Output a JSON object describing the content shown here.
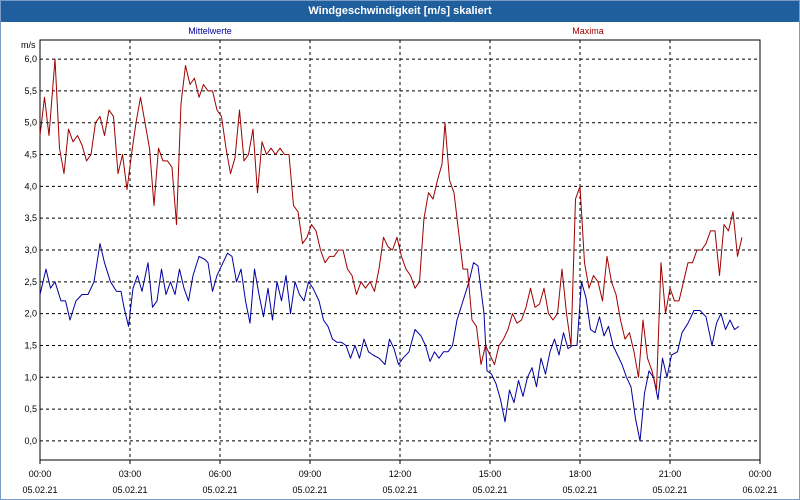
{
  "title": "Windgeschwindigkeit [m/s] skaliert",
  "chart_data": {
    "type": "line",
    "ylabel": "m/s",
    "ylim": [
      -0.3,
      6.3
    ],
    "yticks": [
      "6,0",
      "5,5",
      "5,0",
      "4,5",
      "4,0",
      "3,5",
      "3,0",
      "2,5",
      "2,0",
      "1,5",
      "1,0",
      "0,5",
      "0,0"
    ],
    "ytick_values": [
      6.0,
      5.5,
      5.0,
      4.5,
      4.0,
      3.5,
      3.0,
      2.5,
      2.0,
      1.5,
      1.0,
      0.5,
      0.0
    ],
    "xlim": [
      0,
      24
    ],
    "xticks": [
      {
        "x": 0,
        "time": "00:00",
        "date": "05.02.21"
      },
      {
        "x": 3,
        "time": "03:00",
        "date": "05.02.21"
      },
      {
        "x": 6,
        "time": "06:00",
        "date": "05.02.21"
      },
      {
        "x": 9,
        "time": "09:00",
        "date": "05.02.21"
      },
      {
        "x": 12,
        "time": "12:00",
        "date": "05.02.21"
      },
      {
        "x": 15,
        "time": "15:00",
        "date": "05.02.21"
      },
      {
        "x": 18,
        "time": "18:00",
        "date": "05.02.21"
      },
      {
        "x": 21,
        "time": "21:00",
        "date": "05.02.21"
      },
      {
        "x": 24,
        "time": "00:00",
        "date": "06.02.21"
      }
    ],
    "grid": true,
    "legend_position": "top",
    "series": [
      {
        "name": "Mittelwerte",
        "color": "#0000a0",
        "points": [
          [
            0,
            2.3
          ],
          [
            0.2,
            2.7
          ],
          [
            0.35,
            2.4
          ],
          [
            0.5,
            2.5
          ],
          [
            0.7,
            2.2
          ],
          [
            0.85,
            2.2
          ],
          [
            1.0,
            1.9
          ],
          [
            1.2,
            2.2
          ],
          [
            1.4,
            2.3
          ],
          [
            1.6,
            2.3
          ],
          [
            1.8,
            2.5
          ],
          [
            2.0,
            3.1
          ],
          [
            2.15,
            2.8
          ],
          [
            2.35,
            2.5
          ],
          [
            2.55,
            2.35
          ],
          [
            2.7,
            2.35
          ],
          [
            2.8,
            2.1
          ],
          [
            2.95,
            1.8
          ],
          [
            3.1,
            2.4
          ],
          [
            3.25,
            2.6
          ],
          [
            3.4,
            2.35
          ],
          [
            3.6,
            2.8
          ],
          [
            3.75,
            2.1
          ],
          [
            3.9,
            2.2
          ],
          [
            4.05,
            2.7
          ],
          [
            4.2,
            2.3
          ],
          [
            4.35,
            2.5
          ],
          [
            4.5,
            2.3
          ],
          [
            4.65,
            2.7
          ],
          [
            4.8,
            2.4
          ],
          [
            4.95,
            2.2
          ],
          [
            5.1,
            2.6
          ],
          [
            5.3,
            2.9
          ],
          [
            5.5,
            2.85
          ],
          [
            5.6,
            2.8
          ],
          [
            5.75,
            2.35
          ],
          [
            5.9,
            2.6
          ],
          [
            6.1,
            2.8
          ],
          [
            6.25,
            2.95
          ],
          [
            6.4,
            2.9
          ],
          [
            6.55,
            2.5
          ],
          [
            6.7,
            2.7
          ],
          [
            6.85,
            2.2
          ],
          [
            7.0,
            1.85
          ],
          [
            7.15,
            2.7
          ],
          [
            7.3,
            2.3
          ],
          [
            7.45,
            1.95
          ],
          [
            7.6,
            2.4
          ],
          [
            7.75,
            1.9
          ],
          [
            7.9,
            2.5
          ],
          [
            8.05,
            2.2
          ],
          [
            8.2,
            2.6
          ],
          [
            8.35,
            2.0
          ],
          [
            8.5,
            2.5
          ],
          [
            8.65,
            2.3
          ],
          [
            8.8,
            2.2
          ],
          [
            8.95,
            2.5
          ],
          [
            9.1,
            2.4
          ],
          [
            9.3,
            2.2
          ],
          [
            9.45,
            1.9
          ],
          [
            9.6,
            1.8
          ],
          [
            9.75,
            1.6
          ],
          [
            9.9,
            1.55
          ],
          [
            10.05,
            1.55
          ],
          [
            10.2,
            1.5
          ],
          [
            10.35,
            1.3
          ],
          [
            10.5,
            1.5
          ],
          [
            10.65,
            1.3
          ],
          [
            10.8,
            1.6
          ],
          [
            10.95,
            1.4
          ],
          [
            11.1,
            1.35
          ],
          [
            11.3,
            1.3
          ],
          [
            11.5,
            1.2
          ],
          [
            11.65,
            1.6
          ],
          [
            11.8,
            1.45
          ],
          [
            11.95,
            1.2
          ],
          [
            12.1,
            1.3
          ],
          [
            12.3,
            1.4
          ],
          [
            12.5,
            1.75
          ],
          [
            12.7,
            1.65
          ],
          [
            12.85,
            1.5
          ],
          [
            13.0,
            1.25
          ],
          [
            13.15,
            1.4
          ],
          [
            13.3,
            1.3
          ],
          [
            13.45,
            1.4
          ],
          [
            13.6,
            1.4
          ],
          [
            13.75,
            1.5
          ],
          [
            13.9,
            1.9
          ],
          [
            14.1,
            2.2
          ],
          [
            14.3,
            2.5
          ],
          [
            14.45,
            2.8
          ],
          [
            14.6,
            2.75
          ],
          [
            14.8,
            2.0
          ],
          [
            14.9,
            1.1
          ],
          [
            15.05,
            1.05
          ],
          [
            15.2,
            0.9
          ],
          [
            15.35,
            0.65
          ],
          [
            15.5,
            0.3
          ],
          [
            15.65,
            0.8
          ],
          [
            15.8,
            0.6
          ],
          [
            15.95,
            0.95
          ],
          [
            16.1,
            0.7
          ],
          [
            16.25,
            1.0
          ],
          [
            16.4,
            1.15
          ],
          [
            16.55,
            0.85
          ],
          [
            16.7,
            1.3
          ],
          [
            16.85,
            1.05
          ],
          [
            17.0,
            1.4
          ],
          [
            17.15,
            1.6
          ],
          [
            17.3,
            1.35
          ],
          [
            17.45,
            1.7
          ],
          [
            17.6,
            1.45
          ],
          [
            17.75,
            1.5
          ],
          [
            17.9,
            1.5
          ],
          [
            18.05,
            2.5
          ],
          [
            18.2,
            2.25
          ],
          [
            18.35,
            1.75
          ],
          [
            18.5,
            1.7
          ],
          [
            18.65,
            1.95
          ],
          [
            18.8,
            1.65
          ],
          [
            18.95,
            1.8
          ],
          [
            19.1,
            1.5
          ],
          [
            19.25,
            1.35
          ],
          [
            19.4,
            1.2
          ],
          [
            19.55,
            1.0
          ],
          [
            19.7,
            0.85
          ],
          [
            19.85,
            0.35
          ],
          [
            20.0,
            0.0
          ],
          [
            20.15,
            0.75
          ],
          [
            20.3,
            1.1
          ],
          [
            20.45,
            1.0
          ],
          [
            20.6,
            0.65
          ],
          [
            20.75,
            1.3
          ],
          [
            20.9,
            1.0
          ],
          [
            21.05,
            1.35
          ],
          [
            21.25,
            1.4
          ],
          [
            21.4,
            1.7
          ],
          [
            21.6,
            1.85
          ],
          [
            21.8,
            2.05
          ],
          [
            22.0,
            2.05
          ],
          [
            22.2,
            1.95
          ],
          [
            22.4,
            1.5
          ],
          [
            22.55,
            1.85
          ],
          [
            22.7,
            2.0
          ],
          [
            22.85,
            1.75
          ],
          [
            23.0,
            1.9
          ],
          [
            23.15,
            1.75
          ],
          [
            23.3,
            1.8
          ]
        ]
      },
      {
        "name": "Maxima",
        "color": "#a00000",
        "points": [
          [
            0,
            4.8
          ],
          [
            0.15,
            5.4
          ],
          [
            0.3,
            4.8
          ],
          [
            0.5,
            6.0
          ],
          [
            0.65,
            4.6
          ],
          [
            0.8,
            4.2
          ],
          [
            0.95,
            4.9
          ],
          [
            1.1,
            4.7
          ],
          [
            1.25,
            4.8
          ],
          [
            1.4,
            4.65
          ],
          [
            1.55,
            4.4
          ],
          [
            1.7,
            4.5
          ],
          [
            1.85,
            5.0
          ],
          [
            2.0,
            5.1
          ],
          [
            2.15,
            4.8
          ],
          [
            2.3,
            5.2
          ],
          [
            2.45,
            5.1
          ],
          [
            2.6,
            4.2
          ],
          [
            2.75,
            4.5
          ],
          [
            2.9,
            3.95
          ],
          [
            3.05,
            4.5
          ],
          [
            3.2,
            5.0
          ],
          [
            3.35,
            5.4
          ],
          [
            3.5,
            5.0
          ],
          [
            3.65,
            4.6
          ],
          [
            3.8,
            3.7
          ],
          [
            3.95,
            4.6
          ],
          [
            4.1,
            4.4
          ],
          [
            4.25,
            4.4
          ],
          [
            4.4,
            4.3
          ],
          [
            4.55,
            3.4
          ],
          [
            4.7,
            5.3
          ],
          [
            4.85,
            5.9
          ],
          [
            5.0,
            5.6
          ],
          [
            5.15,
            5.7
          ],
          [
            5.3,
            5.4
          ],
          [
            5.45,
            5.6
          ],
          [
            5.6,
            5.5
          ],
          [
            5.75,
            5.5
          ],
          [
            5.9,
            5.2
          ],
          [
            6.05,
            5.1
          ],
          [
            6.2,
            4.6
          ],
          [
            6.35,
            4.2
          ],
          [
            6.5,
            4.45
          ],
          [
            6.65,
            5.2
          ],
          [
            6.8,
            4.4
          ],
          [
            6.95,
            4.5
          ],
          [
            7.1,
            4.9
          ],
          [
            7.25,
            3.9
          ],
          [
            7.4,
            4.7
          ],
          [
            7.55,
            4.5
          ],
          [
            7.7,
            4.6
          ],
          [
            7.85,
            4.5
          ],
          [
            8.0,
            4.6
          ],
          [
            8.15,
            4.5
          ],
          [
            8.3,
            4.5
          ],
          [
            8.45,
            3.7
          ],
          [
            8.6,
            3.6
          ],
          [
            8.75,
            3.1
          ],
          [
            8.9,
            3.2
          ],
          [
            9.05,
            3.4
          ],
          [
            9.2,
            3.3
          ],
          [
            9.35,
            3.0
          ],
          [
            9.5,
            2.8
          ],
          [
            9.65,
            2.9
          ],
          [
            9.8,
            2.9
          ],
          [
            9.95,
            3.0
          ],
          [
            10.1,
            3.0
          ],
          [
            10.25,
            2.7
          ],
          [
            10.4,
            2.6
          ],
          [
            10.55,
            2.3
          ],
          [
            10.7,
            2.5
          ],
          [
            10.85,
            2.4
          ],
          [
            11.0,
            2.5
          ],
          [
            11.15,
            2.35
          ],
          [
            11.3,
            2.7
          ],
          [
            11.45,
            3.2
          ],
          [
            11.6,
            3.05
          ],
          [
            11.75,
            3.0
          ],
          [
            11.9,
            3.2
          ],
          [
            12.05,
            2.9
          ],
          [
            12.2,
            2.7
          ],
          [
            12.35,
            2.6
          ],
          [
            12.5,
            2.4
          ],
          [
            12.65,
            2.5
          ],
          [
            12.8,
            3.5
          ],
          [
            12.95,
            3.9
          ],
          [
            13.1,
            3.8
          ],
          [
            13.25,
            4.1
          ],
          [
            13.4,
            4.35
          ],
          [
            13.5,
            5.0
          ],
          [
            13.65,
            4.1
          ],
          [
            13.8,
            3.9
          ],
          [
            13.95,
            3.3
          ],
          [
            14.1,
            2.7
          ],
          [
            14.25,
            2.7
          ],
          [
            14.4,
            1.9
          ],
          [
            14.55,
            1.8
          ],
          [
            14.7,
            1.2
          ],
          [
            14.85,
            1.5
          ],
          [
            15.0,
            1.35
          ],
          [
            15.15,
            1.2
          ],
          [
            15.3,
            1.5
          ],
          [
            15.45,
            1.6
          ],
          [
            15.6,
            1.75
          ],
          [
            15.75,
            2.0
          ],
          [
            15.9,
            1.85
          ],
          [
            16.05,
            1.9
          ],
          [
            16.2,
            2.1
          ],
          [
            16.35,
            2.4
          ],
          [
            16.5,
            2.1
          ],
          [
            16.65,
            2.15
          ],
          [
            16.8,
            2.4
          ],
          [
            16.95,
            2.0
          ],
          [
            17.1,
            1.9
          ],
          [
            17.25,
            2.0
          ],
          [
            17.4,
            2.7
          ],
          [
            17.55,
            2.0
          ],
          [
            17.7,
            1.5
          ],
          [
            17.85,
            3.8
          ],
          [
            18.0,
            4.0
          ],
          [
            18.15,
            2.8
          ],
          [
            18.3,
            2.4
          ],
          [
            18.45,
            2.6
          ],
          [
            18.6,
            2.5
          ],
          [
            18.75,
            2.2
          ],
          [
            18.9,
            2.9
          ],
          [
            19.05,
            2.5
          ],
          [
            19.2,
            2.3
          ],
          [
            19.35,
            1.9
          ],
          [
            19.5,
            1.6
          ],
          [
            19.65,
            1.7
          ],
          [
            19.8,
            1.4
          ],
          [
            19.95,
            1.0
          ],
          [
            20.1,
            1.9
          ],
          [
            20.25,
            1.3
          ],
          [
            20.4,
            1.1
          ],
          [
            20.55,
            0.8
          ],
          [
            20.7,
            2.8
          ],
          [
            20.85,
            2.0
          ],
          [
            21.0,
            2.4
          ],
          [
            21.15,
            2.2
          ],
          [
            21.3,
            2.2
          ],
          [
            21.45,
            2.5
          ],
          [
            21.6,
            2.8
          ],
          [
            21.75,
            2.8
          ],
          [
            21.9,
            3.0
          ],
          [
            22.05,
            3.0
          ],
          [
            22.2,
            3.1
          ],
          [
            22.35,
            3.3
          ],
          [
            22.5,
            3.3
          ],
          [
            22.65,
            2.6
          ],
          [
            22.8,
            3.4
          ],
          [
            22.95,
            3.3
          ],
          [
            23.1,
            3.6
          ],
          [
            23.25,
            2.9
          ],
          [
            23.4,
            3.2
          ]
        ]
      }
    ]
  }
}
